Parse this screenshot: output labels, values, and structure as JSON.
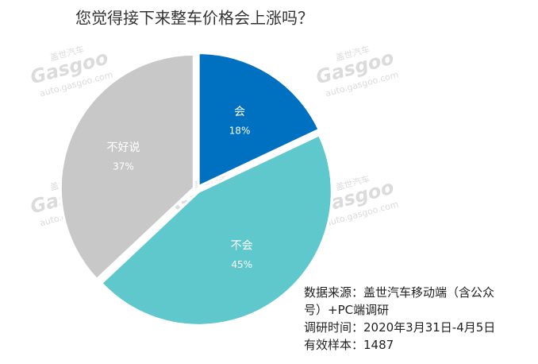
{
  "chart_data": {
    "type": "pie",
    "title": "您觉得接下来整车价格会上涨吗？",
    "categories": [
      "会",
      "不会",
      "不好说"
    ],
    "values": [
      18,
      45,
      37
    ],
    "value_labels": [
      "18%",
      "45%",
      "37%"
    ],
    "colors": [
      "#0070c0",
      "#5fc8cc",
      "#c8c8c8"
    ],
    "notes": [
      "数据来源：盖世汽车移动端（含公众号）+PC端调研",
      "调研时间：2020年3月31日-4月5日",
      "有效样本：1487"
    ],
    "watermark": {
      "brand": "盖世汽车",
      "logo": "Gasgoo",
      "url": "auto.gasgoo.com"
    }
  }
}
